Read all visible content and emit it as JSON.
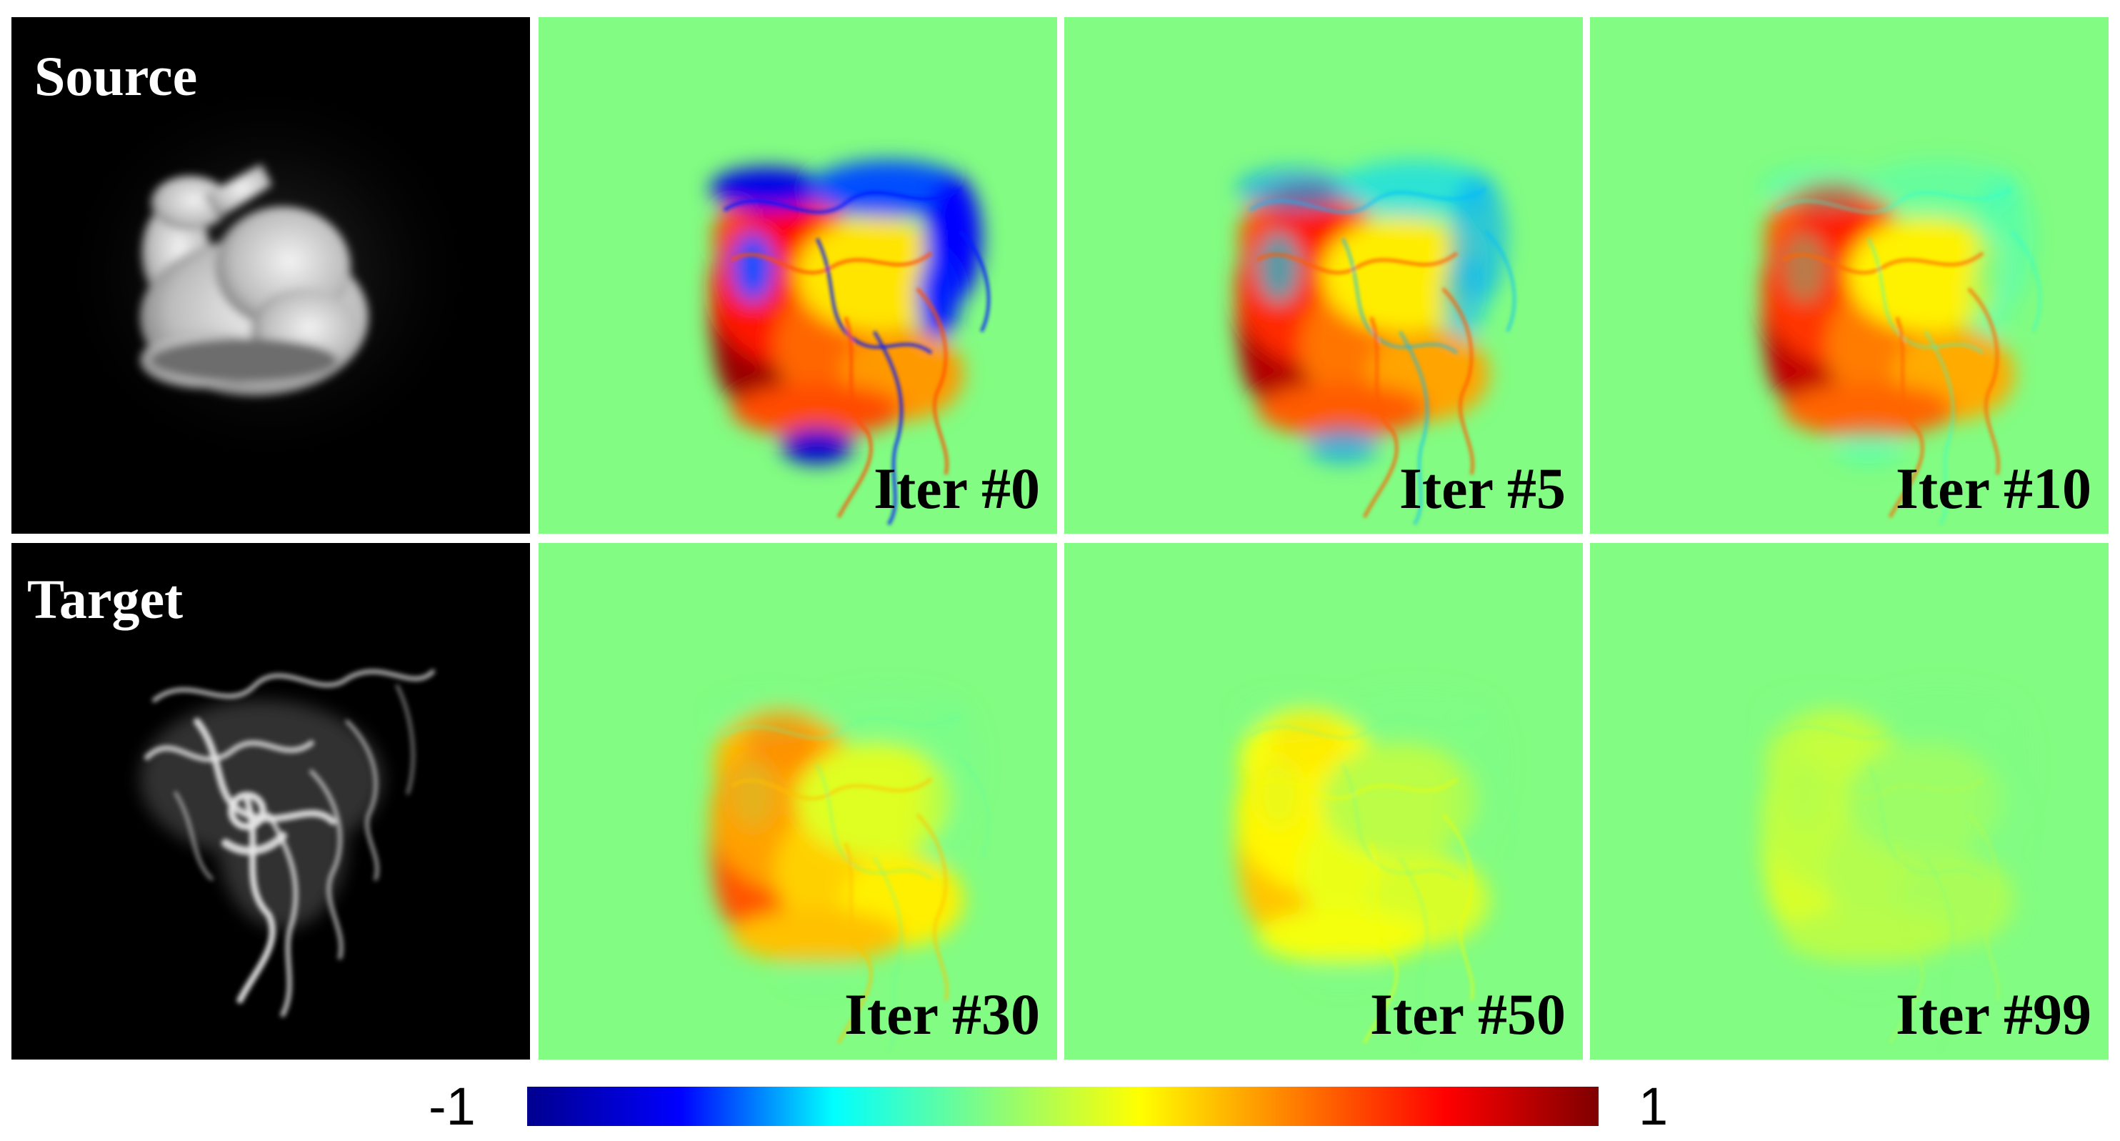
{
  "rows": [
    {
      "label": "Source",
      "panels": [
        {
          "label": "Iter #0",
          "intensity": 1.0,
          "negative": 1.0
        },
        {
          "label": "Iter #5",
          "intensity": 0.95,
          "negative": 0.55
        },
        {
          "label": "Iter #10",
          "intensity": 0.92,
          "negative": 0.25
        }
      ]
    },
    {
      "label": "Target",
      "panels": [
        {
          "label": "Iter #30",
          "intensity": 0.62,
          "negative": 0.08
        },
        {
          "label": "Iter #50",
          "intensity": 0.38,
          "negative": 0.04
        },
        {
          "label": "Iter #99",
          "intensity": 0.18,
          "negative": 0.02
        }
      ]
    }
  ],
  "colorbar": {
    "min_label": "-1",
    "max_label": "1",
    "colormap": "jet",
    "stops": [
      "#00008f",
      "#0000ff",
      "#00ffff",
      "#82fc82",
      "#ffff00",
      "#ff7f00",
      "#ff0000",
      "#7f0000"
    ]
  },
  "colors": {
    "background_zero": "#82fc82",
    "source_bg": "#000000"
  }
}
